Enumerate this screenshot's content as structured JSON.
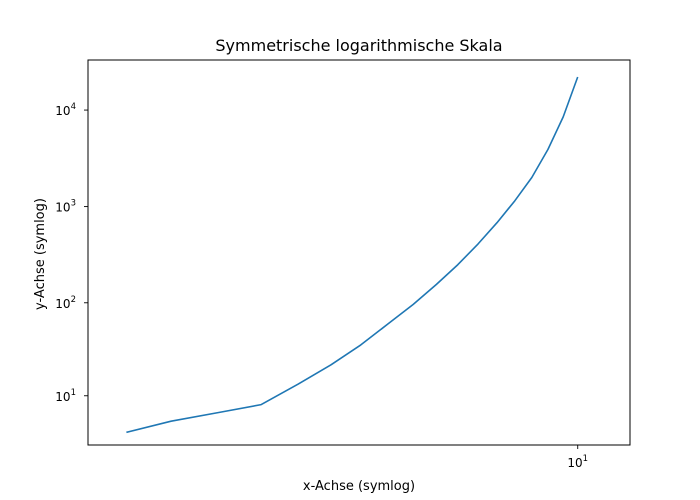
{
  "chart_data": {
    "type": "line",
    "title": "Symmetrische logarithmische Skala",
    "xlabel": "x-Achse (symlog)",
    "ylabel": "y-Achse (symlog)",
    "xscale": "symlog",
    "yscale": "symlog",
    "xlim": [
      1.3,
      12
    ],
    "ylim": [
      2.4,
      33000
    ],
    "grid": false,
    "legend": "none",
    "x_ticks": [
      {
        "value": 10,
        "base": "10",
        "exp": "1"
      }
    ],
    "y_ticks": [
      {
        "value": 10,
        "base": "10",
        "exp": "1"
      },
      {
        "value": 100,
        "base": "10",
        "exp": "2"
      },
      {
        "value": 1000,
        "base": "10",
        "exp": "3"
      },
      {
        "value": 10000,
        "base": "10",
        "exp": "4"
      }
    ],
    "series": [
      {
        "color": "#1f77b4",
        "x": [
          1.6,
          2.0,
          2.5,
          3.0,
          3.5,
          4.0,
          4.5,
          5.0,
          5.5,
          6.0,
          6.5,
          7.0,
          7.5,
          8.0,
          8.5,
          9.0,
          9.5,
          10.0
        ],
        "y": [
          3.6,
          5.0,
          6.4,
          7.9,
          13.5,
          22,
          36,
          60,
          96,
          155,
          250,
          410,
          680,
          1150,
          2000,
          3900,
          8500,
          22000
        ]
      }
    ]
  }
}
